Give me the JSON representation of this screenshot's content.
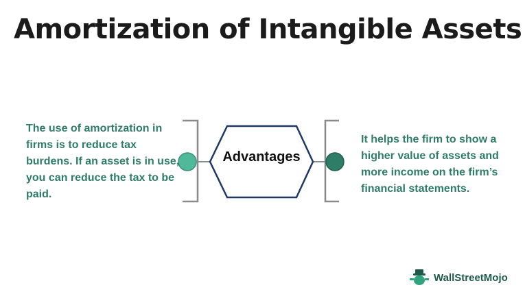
{
  "title": "Amortization of Intangible Assets",
  "center_label": "Advantages",
  "left_text": "The use of amortization in firms is to reduce tax burdens. If an asset is in use, you can reduce the tax to be paid.",
  "right_text": "It helps the firm to show a higher value of assets and more income on the firm’s financial statements.",
  "logo_text": "WallStreetMojo",
  "colors": {
    "text_green": "#2f7d68",
    "left_dot": "#4fb99a",
    "right_dot": "#2e7d67",
    "hexagon_stroke": "#1f3864",
    "bracket": "#8a8a8a"
  }
}
